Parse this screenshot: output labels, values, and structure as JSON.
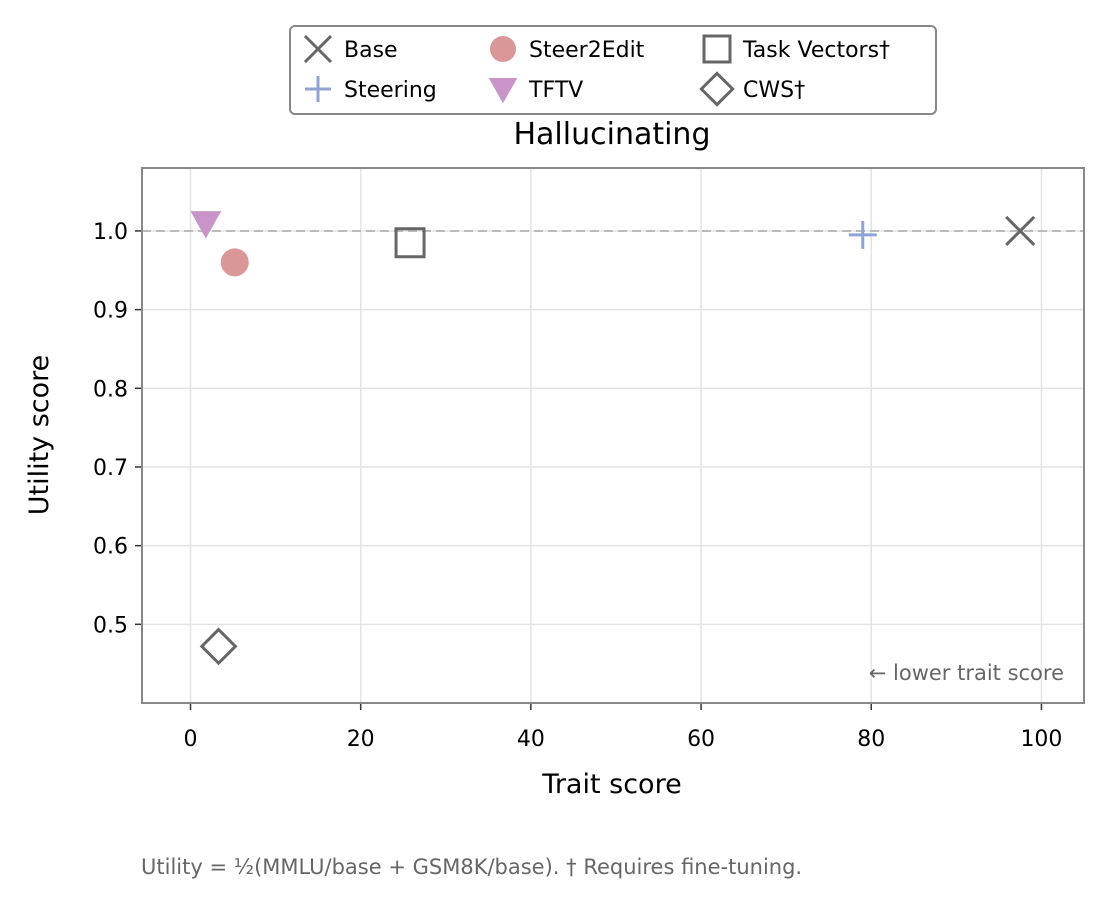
{
  "chart_data": {
    "type": "scatter",
    "title": "Hallucinating",
    "xlabel": "Trait score",
    "ylabel": "Utility score",
    "xlim": [
      -5.7,
      105
    ],
    "ylim": [
      0.4,
      1.08
    ],
    "xticks": [
      0,
      20,
      40,
      60,
      80,
      100
    ],
    "yticks": [
      0.5,
      0.6,
      0.7,
      0.8,
      0.9,
      1.0
    ],
    "xtick_labels": [
      "0",
      "20",
      "40",
      "60",
      "80",
      "100"
    ],
    "ytick_labels": [
      "0.5",
      "0.6",
      "0.7",
      "0.8",
      "0.9",
      "1.0"
    ],
    "grid": true,
    "reference_line_y": 1.0,
    "legend_position": "top-center",
    "annotation": "← lower trait score",
    "series": [
      {
        "name": "Base",
        "marker": "x",
        "color": "#666666",
        "x": [
          97.5
        ],
        "y": [
          1.0
        ]
      },
      {
        "name": "Steering",
        "marker": "plus",
        "color": "#8fa3d6",
        "x": [
          79
        ],
        "y": [
          0.995
        ]
      },
      {
        "name": "Steer2Edit",
        "marker": "circle",
        "color": "#d99797",
        "x": [
          5.2
        ],
        "y": [
          0.96
        ]
      },
      {
        "name": "TFTV",
        "marker": "triangle-down",
        "color": "#c994c8",
        "x": [
          1.8
        ],
        "y": [
          1.01
        ]
      },
      {
        "name": "Task Vectors†",
        "marker": "square",
        "color": "#666666",
        "x": [
          25.8
        ],
        "y": [
          0.985
        ]
      },
      {
        "name": "CWS†",
        "marker": "diamond",
        "color": "#666666",
        "x": [
          3.3
        ],
        "y": [
          0.472
        ]
      }
    ]
  },
  "footnote": "Utility = ½(MMLU/base + GSM8K/base).  † Requires fine-tuning."
}
